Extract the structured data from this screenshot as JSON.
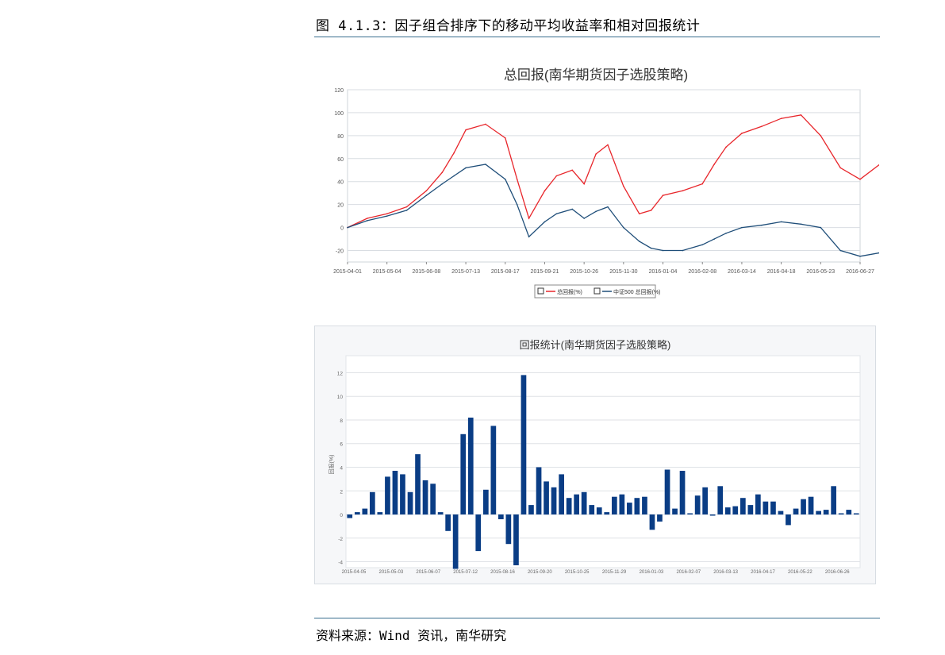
{
  "figure": {
    "title": "图 4.1.3：因子组合排序下的移动平均收益率和相对回报统计",
    "source": "资料来源：Wind 资讯，南华研究"
  },
  "colors": {
    "line_total": "#e8262b",
    "line_csi500": "#1f4e79",
    "bars": "#0a3d85",
    "rule": "#3a6f8f"
  },
  "chart_data": [
    {
      "type": "line",
      "title": "总回报(南华期货因子选股策略)",
      "ylim": [
        -30,
        120
      ],
      "yticks": [
        "-20",
        "0",
        "20",
        "40",
        "60",
        "80",
        "100",
        "120"
      ],
      "xticks": [
        "2015-04-01",
        "2015-05-04",
        "2015-06-08",
        "2015-07-13",
        "2015-08-17",
        "2015-09-21",
        "2015-10-26",
        "2015-11-30",
        "2016-01-04",
        "2016-02-08",
        "2016-03-14",
        "2016-04-18",
        "2016-05-23",
        "2016-06-27"
      ],
      "legend_position": "bottom",
      "grid": true,
      "series": [
        {
          "name": "总回报(%)",
          "x": [
            0,
            0.5,
            1,
            1.5,
            2,
            2.4,
            2.7,
            3,
            3.5,
            4,
            4.3,
            4.6,
            5,
            5.3,
            5.7,
            6,
            6.3,
            6.6,
            7,
            7.4,
            7.7,
            8,
            8.5,
            9,
            9.3,
            9.6,
            10,
            10.5,
            11,
            11.5,
            12,
            12.5,
            13,
            13.5,
            13.7,
            13.9
          ],
          "values": [
            0,
            8,
            12,
            18,
            32,
            48,
            65,
            85,
            90,
            78,
            42,
            8,
            32,
            45,
            50,
            38,
            64,
            72,
            36,
            12,
            15,
            28,
            32,
            38,
            55,
            70,
            82,
            88,
            95,
            98,
            80,
            52,
            42,
            55,
            57,
            57
          ]
        },
        {
          "name": "中证500 总回报(%)",
          "x": [
            0,
            0.5,
            1,
            1.5,
            2,
            2.4,
            2.7,
            3,
            3.5,
            4,
            4.3,
            4.6,
            5,
            5.3,
            5.7,
            6,
            6.3,
            6.6,
            7,
            7.4,
            7.7,
            8,
            8.5,
            9,
            9.3,
            9.6,
            10,
            10.5,
            11,
            11.5,
            12,
            12.5,
            13,
            13.5,
            13.7,
            13.9
          ],
          "values": [
            0,
            6,
            10,
            15,
            28,
            38,
            45,
            52,
            55,
            42,
            20,
            -8,
            5,
            12,
            16,
            8,
            14,
            18,
            0,
            -12,
            -18,
            -20,
            -20,
            -15,
            -10,
            -5,
            0,
            2,
            5,
            3,
            0,
            -20,
            -25,
            -22,
            -24,
            -22
          ]
        }
      ]
    },
    {
      "type": "bar",
      "title": "回报统计(南华期货因子选股策略)",
      "ylabel": "回报(%)",
      "ylim": [
        -4.5,
        12.5
      ],
      "yticks": [
        "-4",
        "-2",
        "0",
        "2",
        "4",
        "6",
        "8",
        "10",
        "12"
      ],
      "xticks": [
        "2015-04-05",
        "2015-05-03",
        "2015-06-07",
        "2015-07-12",
        "2015-08-16",
        "2015-09-20",
        "2015-10-25",
        "2015-11-29",
        "2016-01-03",
        "2016-02-07",
        "2016-03-13",
        "2016-04-17",
        "2016-05-22",
        "2016-06-26"
      ],
      "grid": true,
      "values": [
        -0.3,
        0.2,
        0.5,
        1.9,
        0.2,
        3.2,
        3.7,
        3.4,
        1.9,
        5.1,
        2.9,
        2.6,
        0.2,
        -1.4,
        -4.6,
        6.8,
        8.2,
        -3.1,
        2.1,
        7.5,
        -0.4,
        -2.5,
        -4.3,
        11.8,
        0.8,
        4.0,
        2.8,
        2.3,
        3.4,
        1.4,
        1.7,
        1.9,
        0.8,
        0.6,
        0.2,
        1.5,
        1.7,
        1.0,
        1.4,
        1.5,
        -1.3,
        -0.6,
        3.8,
        0.5,
        3.7,
        0.1,
        1.6,
        2.3,
        -0.1,
        2.4,
        0.6,
        0.7,
        1.4,
        0.8,
        1.7,
        1.1,
        1.1,
        0.3,
        -0.9,
        0.5,
        1.3,
        1.5,
        0.3,
        0.4,
        2.4,
        0.1,
        0.4,
        0.1
      ]
    }
  ]
}
